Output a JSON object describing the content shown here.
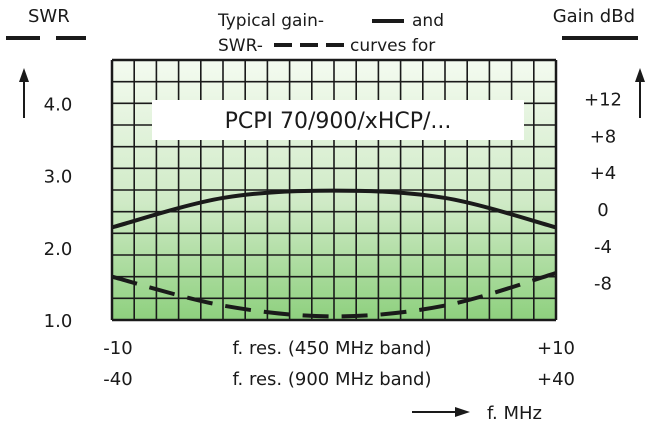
{
  "header": {
    "left_axis_title": "SWR",
    "right_axis_title": "Gain dBd",
    "legend_line1": "Typical gain-",
    "legend_line1_end": "and",
    "legend_line2": "SWR-",
    "legend_line2_end": "curves for",
    "product_label": "PCPI 70/900/xHCP/..."
  },
  "xaxis": {
    "left_450": "-10",
    "label_450": "f. res. (450 MHz band)",
    "right_450": "+10",
    "left_900": "-40",
    "label_900": "f. res. (900 MHz band)",
    "right_900": "+40",
    "unit_label": "f. MHz"
  },
  "colors": {
    "gain_line": "#1a1a1a",
    "swr_line": "#1a1a1a",
    "grid_line": "#1a1a1a",
    "fill_top": "#f4fbf0",
    "fill_bottom": "#8ed07e"
  },
  "chart_data": {
    "type": "line",
    "title": "",
    "x": [
      -10,
      -5,
      0,
      5,
      10
    ],
    "xlim": [
      -10,
      10
    ],
    "secondary_x": {
      "label": "f. res. (900 MHz band)",
      "ticks": [
        -40,
        40
      ]
    },
    "xlabel": "f. res. (450 MHz band)",
    "y_left": {
      "label": "SWR",
      "ticks": [
        1.0,
        2.0,
        3.0,
        4.0
      ],
      "ylim": [
        1.0,
        4.6
      ]
    },
    "y_right": {
      "label": "Gain dBd",
      "ticks": [
        -8,
        -4,
        0,
        4,
        8,
        12
      ]
    },
    "series": [
      {
        "name": "gain",
        "axis": "right",
        "style": "solid",
        "values": [
          -2.0,
          1.2,
          2.0,
          1.2,
          -2.0
        ]
      },
      {
        "name": "SWR",
        "axis": "left",
        "style": "dashed",
        "values": [
          1.6,
          1.2,
          1.05,
          1.2,
          1.65
        ]
      }
    ],
    "grid": true,
    "legend": "top-center"
  }
}
